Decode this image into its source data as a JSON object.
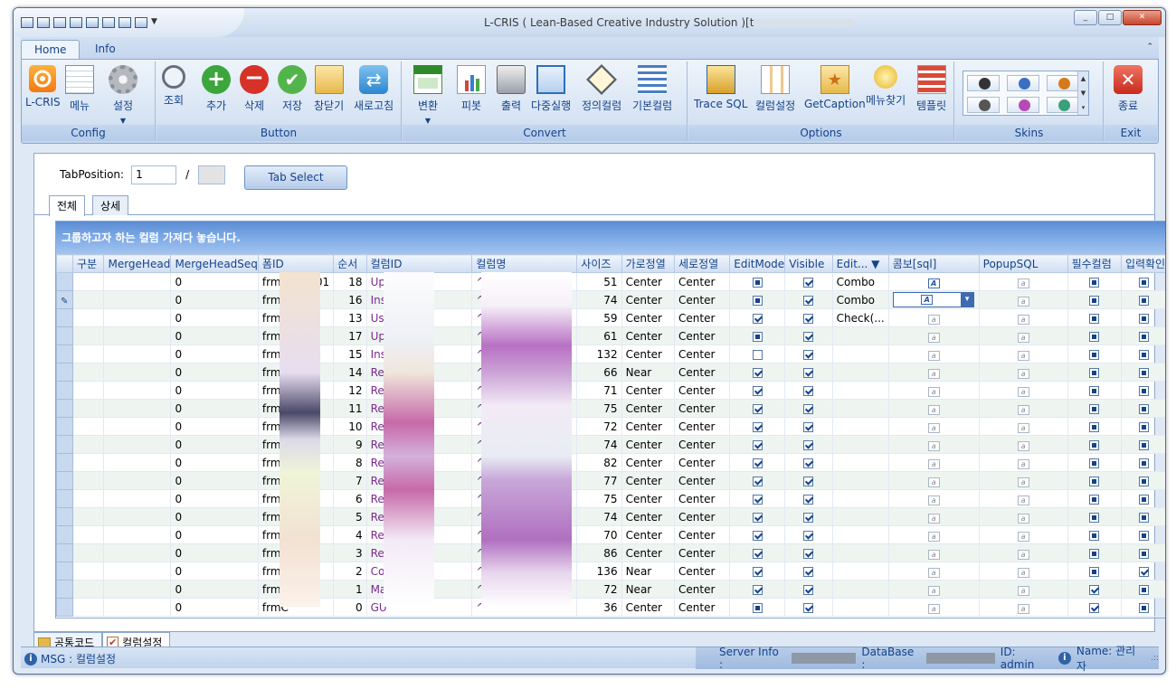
{
  "window": {
    "title": "L-CRIS ( Lean-Based Creative Industry Solution )[t",
    "controls": [
      "_",
      "□",
      "✕"
    ]
  },
  "ribbon_tabs": [
    "Home",
    "Info"
  ],
  "groups": {
    "config": {
      "label": "Config",
      "buttons": [
        "L-CRIS",
        "메뉴",
        "설정"
      ]
    },
    "button": {
      "label": "Button",
      "buttons": [
        "조회",
        "추가",
        "삭제",
        "저장",
        "창닫기",
        "새로고침"
      ]
    },
    "convert": {
      "label": "Convert",
      "buttons": [
        "변환",
        "피봇",
        "출력",
        "다중실행",
        "정의컬럼",
        "기본컬럼"
      ]
    },
    "options": {
      "label": "Options",
      "buttons": [
        "Trace SQL",
        "컬럼설정",
        "GetCaption",
        "메뉴찾기",
        "템플릿"
      ]
    },
    "skins": {
      "label": "Skins"
    },
    "exit": {
      "label": "Exit",
      "buttons": [
        "종료"
      ]
    }
  },
  "tab_position": {
    "label": "TabPosition:",
    "value": "1",
    "separator": "/",
    "total": "",
    "select_button": "Tab Select"
  },
  "inner_tabs": [
    "전체",
    "상세"
  ],
  "grid": {
    "banner": "그룹하고자 하는 컬럼 가져다 놓습니다.",
    "columns": [
      "구분",
      "MergeHead",
      "MergeHeadSeq",
      "폼ID",
      "순서",
      "컬럼ID",
      "컬럼명",
      "사이즈",
      "가로정열",
      "세로정열",
      "EditMode",
      "Visible",
      "Edit...",
      "콤보[sql]",
      "PopupSQL",
      "필수컬럼",
      "입력확인"
    ],
    "rows": [
      {
        "seq": "0",
        "form": "frmCode001",
        "order": "18",
        "colid": "UpdateID",
        "colname": "수정자",
        "size": "51",
        "h": "Center",
        "v": "Center",
        "edit": "sq",
        "vis": "ck",
        "editor": "Combo",
        "combo": "on",
        "req": "sq",
        "conf": "sq"
      },
      {
        "seq": "0",
        "form": "frmC",
        "order": "16",
        "colid": "Inse",
        "colname": "",
        "size": "74",
        "h": "Center",
        "v": "Center",
        "edit": "sq",
        "vis": "ck",
        "editor": "Combo",
        "combo": "dd",
        "req": "sq",
        "conf": "sq"
      },
      {
        "seq": "0",
        "form": "frmC",
        "order": "13",
        "colid": "Use",
        "colname": "",
        "size": "59",
        "h": "Center",
        "v": "Center",
        "edit": "ck",
        "vis": "ck",
        "editor": "Check(...",
        "combo": "off",
        "req": "sq",
        "conf": "sq"
      },
      {
        "seq": "0",
        "form": "frmC",
        "order": "17",
        "colid": "Upd",
        "colname": "",
        "size": "61",
        "h": "Center",
        "v": "Center",
        "edit": "sq",
        "vis": "ck",
        "editor": "",
        "combo": "off",
        "req": "sq",
        "conf": "sq"
      },
      {
        "seq": "0",
        "form": "frmC",
        "order": "15",
        "colid": "Inse",
        "colname": "",
        "size": "132",
        "h": "Center",
        "v": "Center",
        "edit": "no",
        "vis": "ck",
        "editor": "",
        "combo": "off",
        "req": "sq",
        "conf": "sq"
      },
      {
        "seq": "0",
        "form": "frmC",
        "order": "14",
        "colid": "Ren",
        "colname": "",
        "size": "66",
        "h": "Near",
        "v": "Center",
        "edit": "ck",
        "vis": "ck",
        "editor": "",
        "combo": "off",
        "req": "sq",
        "conf": "sq"
      },
      {
        "seq": "0",
        "form": "frmC",
        "order": "12",
        "colid": "Refl",
        "colname": "",
        "size": "71",
        "h": "Center",
        "v": "Center",
        "edit": "ck",
        "vis": "ck",
        "editor": "",
        "combo": "off",
        "req": "sq",
        "conf": "sq"
      },
      {
        "seq": "0",
        "form": "frmC",
        "order": "11",
        "colid": "Refl",
        "colname": "",
        "size": "75",
        "h": "Center",
        "v": "Center",
        "edit": "ck",
        "vis": "ck",
        "editor": "",
        "combo": "off",
        "req": "sq",
        "conf": "sq"
      },
      {
        "seq": "0",
        "form": "frmC",
        "order": "10",
        "colid": "Refl",
        "colname": "",
        "size": "72",
        "h": "Center",
        "v": "Center",
        "edit": "ck",
        "vis": "ck",
        "editor": "",
        "combo": "off",
        "req": "sq",
        "conf": "sq"
      },
      {
        "seq": "0",
        "form": "frmC",
        "order": "9",
        "colid": "Refl",
        "colname": "",
        "size": "74",
        "h": "Center",
        "v": "Center",
        "edit": "ck",
        "vis": "ck",
        "editor": "",
        "combo": "off",
        "req": "sq",
        "conf": "sq"
      },
      {
        "seq": "0",
        "form": "frmC",
        "order": "8",
        "colid": "Refl",
        "colname": "",
        "size": "82",
        "h": "Center",
        "v": "Center",
        "edit": "ck",
        "vis": "ck",
        "editor": "",
        "combo": "off",
        "req": "sq",
        "conf": "sq"
      },
      {
        "seq": "0",
        "form": "frmC",
        "order": "7",
        "colid": "Refl",
        "colname": "",
        "size": "77",
        "h": "Center",
        "v": "Center",
        "edit": "ck",
        "vis": "ck",
        "editor": "",
        "combo": "off",
        "req": "sq",
        "conf": "sq"
      },
      {
        "seq": "0",
        "form": "frmC",
        "order": "6",
        "colid": "Refl",
        "colname": "",
        "size": "75",
        "h": "Center",
        "v": "Center",
        "edit": "ck",
        "vis": "ck",
        "editor": "",
        "combo": "off",
        "req": "sq",
        "conf": "sq"
      },
      {
        "seq": "0",
        "form": "frmC",
        "order": "5",
        "colid": "Refl",
        "colname": "",
        "size": "74",
        "h": "Center",
        "v": "Center",
        "edit": "ck",
        "vis": "ck",
        "editor": "",
        "combo": "off",
        "req": "sq",
        "conf": "sq"
      },
      {
        "seq": "0",
        "form": "frmC",
        "order": "4",
        "colid": "Refl",
        "colname": "",
        "size": "70",
        "h": "Center",
        "v": "Center",
        "edit": "ck",
        "vis": "ck",
        "editor": "",
        "combo": "off",
        "req": "sq",
        "conf": "sq"
      },
      {
        "seq": "0",
        "form": "frmC",
        "order": "3",
        "colid": "Refl",
        "colname": "",
        "size": "86",
        "h": "Center",
        "v": "Center",
        "edit": "ck",
        "vis": "ck",
        "editor": "",
        "combo": "off",
        "req": "sq",
        "conf": "sq"
      },
      {
        "seq": "0",
        "form": "frmC",
        "order": "2",
        "colid": "Cod",
        "colname": "",
        "size": "136",
        "h": "Near",
        "v": "Center",
        "edit": "ck",
        "vis": "ck",
        "editor": "",
        "combo": "off",
        "req": "sq",
        "conf": "ck"
      },
      {
        "seq": "0",
        "form": "frmC",
        "order": "1",
        "colid": "Main",
        "colname": "",
        "size": "72",
        "h": "Near",
        "v": "Center",
        "edit": "ck",
        "vis": "ck",
        "editor": "",
        "combo": "off",
        "req": "ck",
        "conf": "sq"
      },
      {
        "seq": "0",
        "form": "frmC",
        "order": "0",
        "colid": "GU",
        "colname": "",
        "size": "36",
        "h": "Center",
        "v": "Center",
        "edit": "sq",
        "vis": "ck",
        "editor": "",
        "combo": "off",
        "req": "ck",
        "conf": "sq"
      }
    ]
  },
  "bottom_tabs": [
    "공통코드",
    "컬럼설정"
  ],
  "status": {
    "msg": "MSG : 컬럼설정",
    "server_label": "Server Info :",
    "db_label": "DataBase :",
    "id_text": "ID: admin",
    "name_text": "Name: 관리자"
  }
}
